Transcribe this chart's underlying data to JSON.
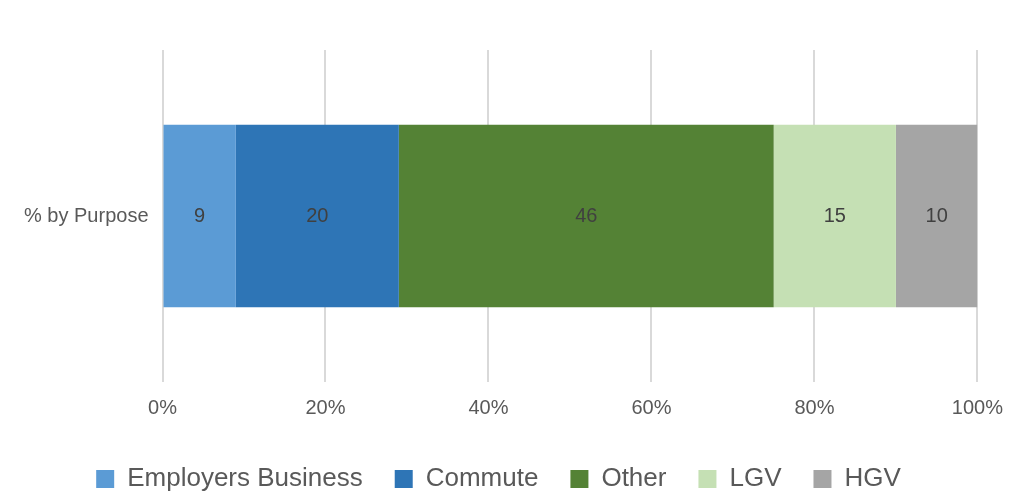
{
  "chart_data": {
    "type": "bar",
    "orientation": "horizontal",
    "stacked": true,
    "categories": [
      "% by Purpose"
    ],
    "series": [
      {
        "name": "Employers Business",
        "color": "#5b9bd5",
        "values": [
          9
        ]
      },
      {
        "name": "Commute",
        "color": "#2e75b6",
        "values": [
          20
        ]
      },
      {
        "name": "Other",
        "color": "#548235",
        "values": [
          46
        ]
      },
      {
        "name": "LGV",
        "color": "#c5e0b4",
        "values": [
          15
        ]
      },
      {
        "name": "HGV",
        "color": "#a5a5a5",
        "values": [
          10
        ]
      }
    ],
    "xlim": [
      0,
      100
    ],
    "xticks": [
      {
        "value": 0,
        "label": "0%"
      },
      {
        "value": 20,
        "label": "20%"
      },
      {
        "value": 40,
        "label": "40%"
      },
      {
        "value": 60,
        "label": "60%"
      },
      {
        "value": 80,
        "label": "80%"
      },
      {
        "value": 100,
        "label": "100%"
      }
    ],
    "grid": "x",
    "legend": "bottom",
    "data_labels": true
  }
}
